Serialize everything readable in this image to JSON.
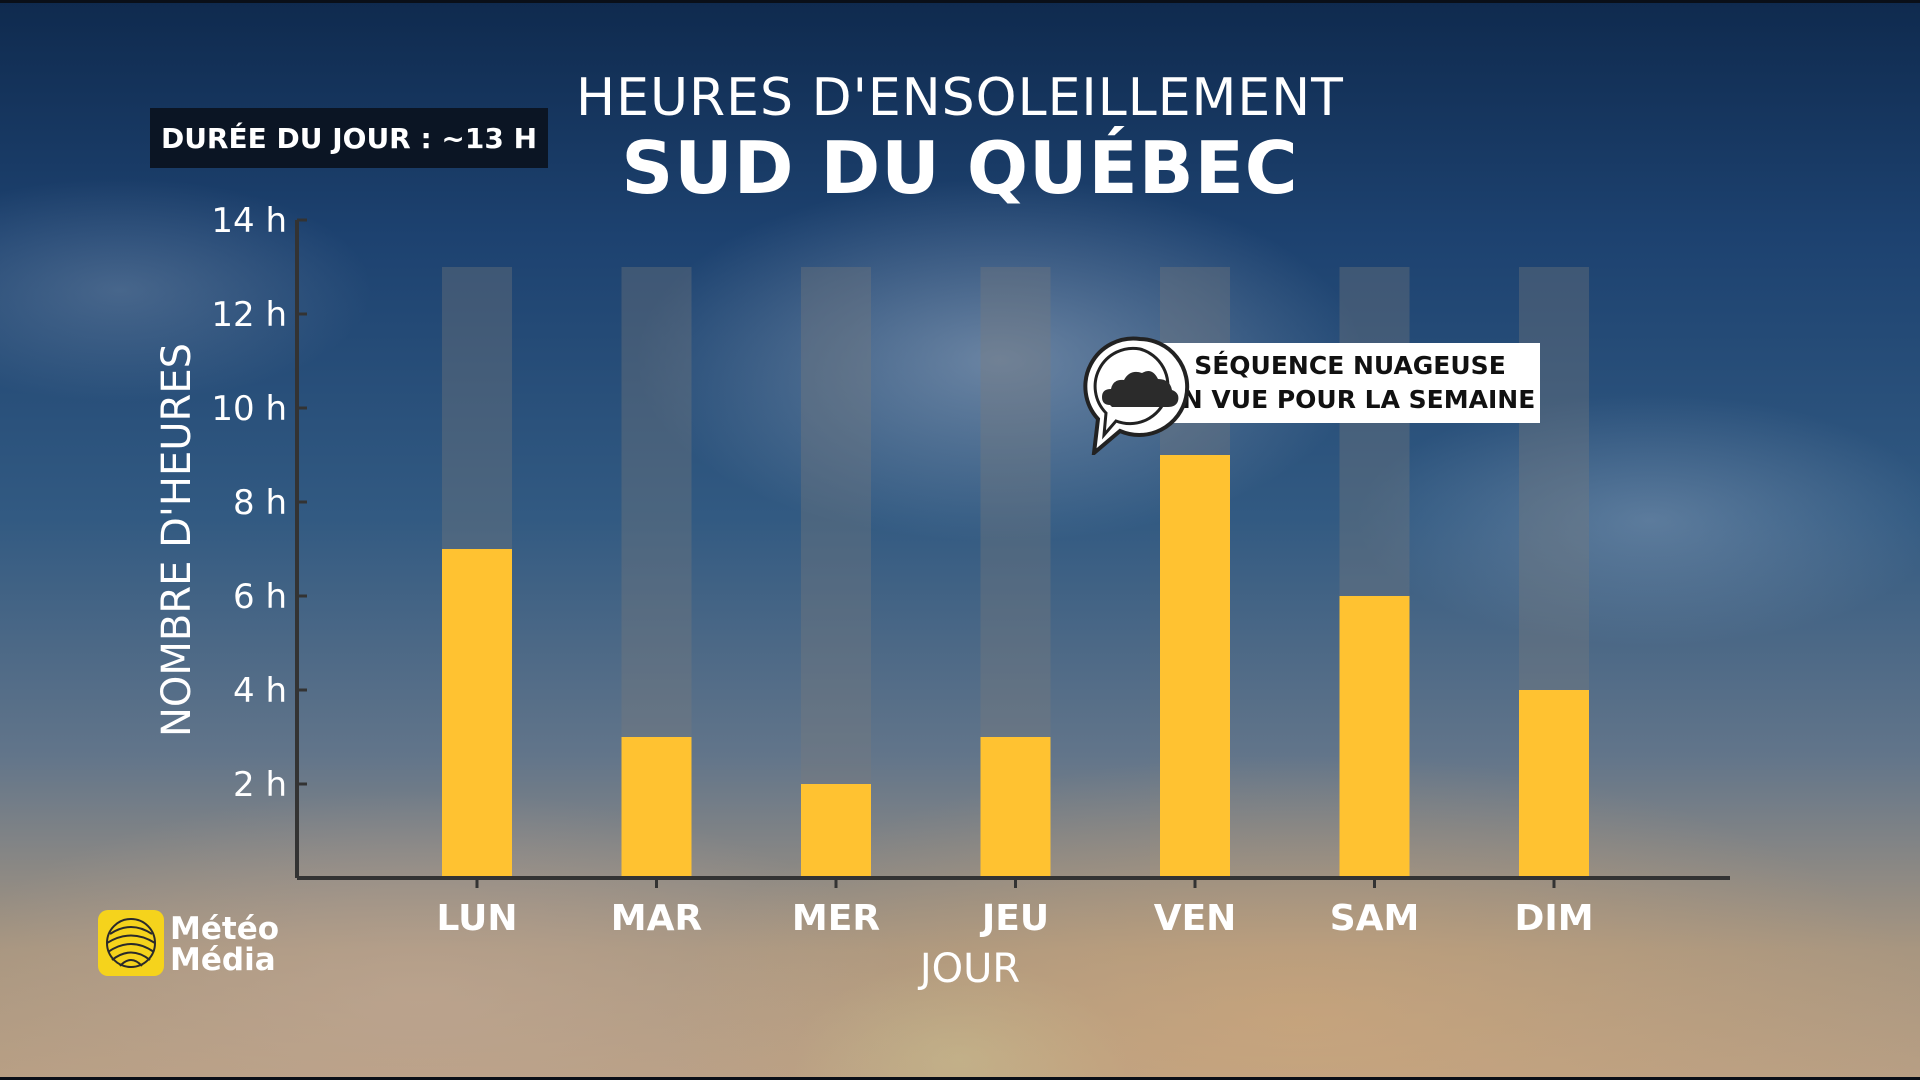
{
  "header": {
    "title_top": "HEURES D'ENSOLEILLEMENT",
    "title_main": "SUD DU QUÉBEC"
  },
  "day_length_badge": "DURÉE DU JOUR : ~13 H",
  "callout": {
    "line1": "SÉQUENCE NUAGEUSE",
    "line2": "EN VUE POUR LA SEMAINE",
    "icon": "cloud-speech-bubble-icon"
  },
  "logo": {
    "line1": "Météo",
    "line2": "Média",
    "icon": "meteomedia-globe-icon"
  },
  "colors": {
    "bar": "#ffc231",
    "background_bar": "#7a7a7a",
    "axis": "#333333"
  },
  "chart_data": {
    "type": "bar",
    "title": "HEURES D'ENSOLEILLEMENT",
    "subtitle": "SUD DU QUÉBEC",
    "xlabel": "JOUR",
    "ylabel": "NOMBRE D'HEURES",
    "categories": [
      "LUN",
      "MAR",
      "MER",
      "JEU",
      "VEN",
      "SAM",
      "DIM"
    ],
    "series": [
      {
        "values": [
          7,
          3,
          2,
          3,
          9,
          6,
          4
        ]
      }
    ],
    "day_length": 13,
    "ylim": [
      0,
      14
    ],
    "yticks": [
      2,
      4,
      6,
      8,
      10,
      12,
      14
    ],
    "ytick_labels": [
      "2 h",
      "4 h",
      "6 h",
      "8 h",
      "10 h",
      "12 h",
      "14 h"
    ],
    "grid": false,
    "legend": "none"
  }
}
